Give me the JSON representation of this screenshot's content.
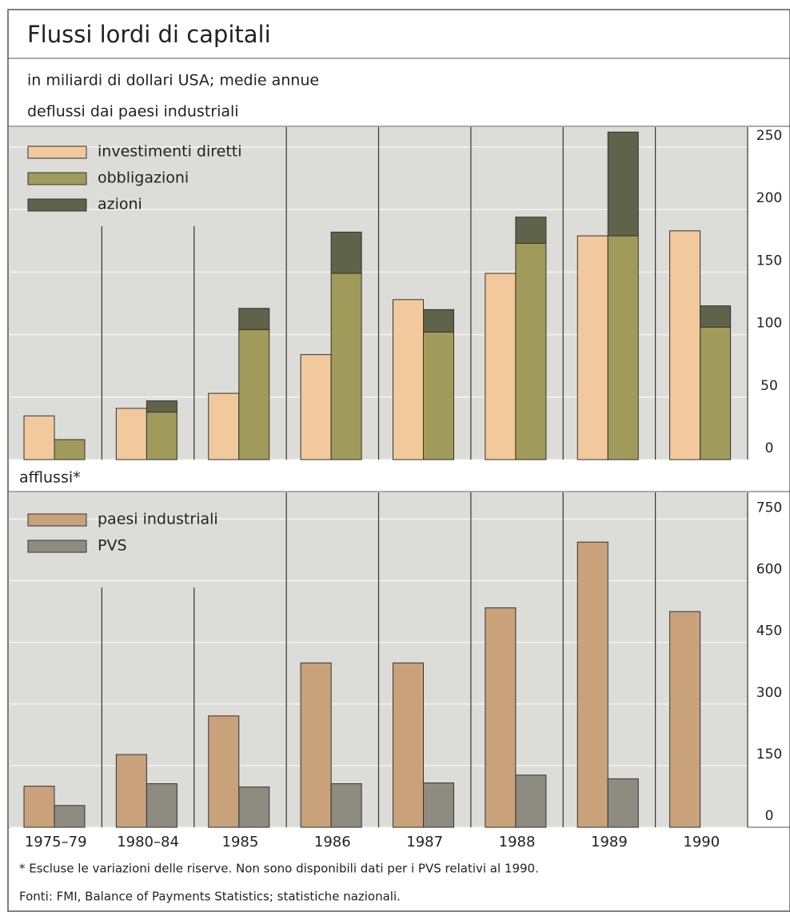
{
  "chart_data": [
    {
      "type": "bar",
      "title": "Flussi lordi di capitali",
      "subtitle": "in miliardi di dollari USA; medie annue",
      "panel_label": "deflussi dai paesi industriali",
      "series": [
        {
          "name": "investimenti diretti",
          "color": "#f2c99c",
          "values": [
            35,
            41,
            53,
            84,
            128,
            149,
            179,
            183
          ]
        },
        {
          "name": "obbligazioni",
          "color": "#a09b5a",
          "values": [
            16,
            38,
            104,
            149,
            102,
            173,
            179,
            106
          ]
        },
        {
          "name": "azioni",
          "color": "#5f6349",
          "values": [
            0,
            9,
            17,
            33,
            18,
            21,
            83,
            17
          ]
        }
      ],
      "ylim": [
        0,
        266
      ],
      "yticks": [
        0,
        50,
        100,
        150,
        200,
        250
      ],
      "grid": true
    },
    {
      "type": "bar",
      "panel_label": "afflussi*",
      "categories": [
        "1975–79",
        "1980–84",
        "1985",
        "1986",
        "1987",
        "1988",
        "1989",
        "1990"
      ],
      "series": [
        {
          "name": "paesi industriali",
          "color": "#c9a27b",
          "values": [
            100,
            177,
            271,
            400,
            400,
            534,
            694,
            525
          ]
        },
        {
          "name": "PVS",
          "color": "#8e8b80",
          "values": [
            53,
            106,
            98,
            106,
            108,
            127,
            118,
            null
          ]
        }
      ],
      "ylim": [
        0,
        815
      ],
      "yticks": [
        0,
        150,
        300,
        450,
        600,
        750
      ],
      "grid": true,
      "notes": [
        "* Escluse le variazioni delle riserve. Non sono disponibili dati per i PVS relativi al 1990.",
        "Fonti: FMI, Balance of Payments Statistics; statistiche nazionali."
      ]
    }
  ]
}
